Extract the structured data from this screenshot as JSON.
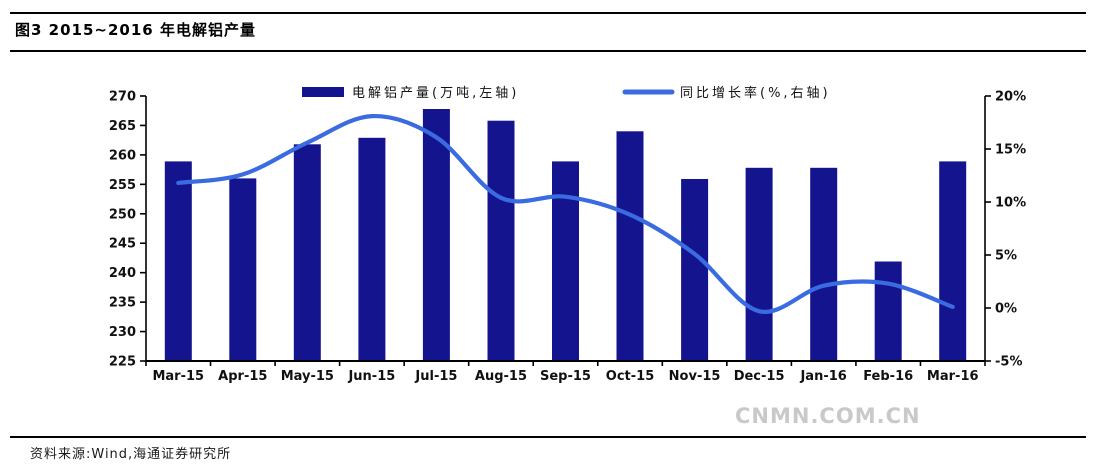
{
  "figure": {
    "title": "图3  2015~2016 年电解铝产量",
    "source": "资料来源:Wind,海通证券研究所",
    "watermark": "CNMN.COM.CN"
  },
  "colors": {
    "bar": "#14148F",
    "line": "#3A6BE0",
    "axis": "#000000",
    "text": "#111111",
    "rule": "#000000",
    "watermark": "#C9C9C9"
  },
  "chart_data": {
    "type": "combo-bar-line",
    "title": "图3 2015~2016 年电解铝产量",
    "categories": [
      "Mar-15",
      "Apr-15",
      "May-15",
      "Jun-15",
      "Jul-15",
      "Aug-15",
      "Sep-15",
      "Oct-15",
      "Nov-15",
      "Dec-15",
      "Jan-16",
      "Feb-16",
      "Mar-16"
    ],
    "series": [
      {
        "name": "电解铝产量(万吨,左轴)",
        "type": "bar",
        "axis": "left",
        "color": "#14148F",
        "values": [
          258.9,
          256.0,
          261.8,
          262.9,
          267.8,
          265.8,
          258.9,
          264.0,
          255.9,
          257.8,
          257.8,
          241.9,
          258.9
        ]
      },
      {
        "name": "同比增长率(%,右轴)",
        "type": "line",
        "axis": "right",
        "color": "#3A6BE0",
        "values": [
          11.8,
          12.6,
          15.6,
          18.1,
          16.1,
          10.4,
          10.5,
          8.8,
          5.1,
          -0.3,
          2.1,
          2.3,
          0.1
        ]
      }
    ],
    "left_axis": {
      "min": 225,
      "max": 270,
      "step": 5,
      "ticks": [
        "225",
        "230",
        "235",
        "240",
        "245",
        "250",
        "255",
        "260",
        "265",
        "270"
      ]
    },
    "right_axis": {
      "min": -5,
      "max": 20,
      "step": 5,
      "ticks": [
        "-5%",
        "0%",
        "5%",
        "10%",
        "15%",
        "20%"
      ]
    },
    "legend_position": "top",
    "grid": false
  }
}
